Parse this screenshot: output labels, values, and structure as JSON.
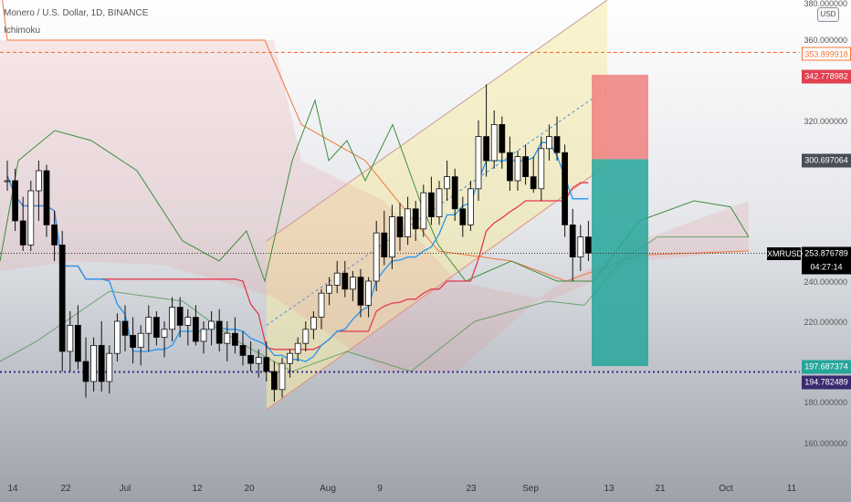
{
  "header": {
    "title": "Monero / U.S. Dollar, 1D, BINANCE",
    "indicator": "Ichimoku",
    "currency_badge": "USD"
  },
  "price_axis": {
    "labels": [
      "380.000000",
      "360.000000",
      "320.000000",
      "240.000000",
      "220.000000",
      "180.000000",
      "160.000000"
    ]
  },
  "time_axis": {
    "labels": [
      "14",
      "22",
      "Jul",
      "12",
      "20",
      "Aug",
      "9",
      "23",
      "Sep",
      "13",
      "21",
      "Oct",
      "11"
    ]
  },
  "price_tags": {
    "resistance_line": {
      "value": "353.899918",
      "bg": "#ffffff",
      "color": "#f0773a"
    },
    "target_price": {
      "value": "342.778982",
      "bg": "#e0404f",
      "color": "#ffffff"
    },
    "entry_price": {
      "value": "300.697064",
      "bg": "#4a4e57",
      "color": "#ffffff"
    },
    "current_price": {
      "value": "253.876789",
      "bg": "#000000",
      "color": "#ffffff"
    },
    "countdown": {
      "value": "04:27:14",
      "bg": "#000000",
      "color": "#ffffff"
    },
    "stop_price": {
      "value": "197.687374",
      "bg": "#26a69a",
      "color": "#ffffff"
    },
    "support_line": {
      "value": "194.782489",
      "bg": "#3b2a6e",
      "color": "#ffffff"
    }
  },
  "symbol_tag": "XMRUSD",
  "colors": {
    "bull_candle": "#ffffff",
    "bear_candle": "#000000",
    "conversion_line": "#2196f3",
    "base_line": "#e53950",
    "leading_span_a": "#3e8e3e",
    "leading_span_b": "#f0773a",
    "channel_fill": "#f5eba6",
    "long_profit": "#26a69a",
    "long_loss": "#f08080",
    "resistance_line": "#f0773a",
    "support_line": "#3b2a8e"
  },
  "chart_data": {
    "type": "candlestick",
    "title": "Monero / U.S. Dollar, 1D, BINANCE",
    "ylim": [
      150,
      385
    ],
    "x_ticks": [
      "14",
      "22",
      "Jul",
      "12",
      "20",
      "Aug",
      "9",
      "23",
      "Sep",
      "13",
      "21",
      "Oct",
      "11"
    ],
    "y_ticks": [
      380,
      360,
      320,
      240,
      220,
      180,
      160
    ],
    "levels": {
      "resistance": 353.899918,
      "support": 194.782489,
      "last_price": 253.876789
    },
    "long_position": {
      "entry": 300.697064,
      "target": 342.778982,
      "stop": 197.687374
    },
    "candles": [
      [
        290,
        300,
        285,
        290
      ],
      [
        290,
        296,
        265,
        270
      ],
      [
        270,
        282,
        255,
        258
      ],
      [
        258,
        290,
        255,
        285
      ],
      [
        285,
        300,
        270,
        295
      ],
      [
        295,
        298,
        262,
        268
      ],
      [
        268,
        275,
        250,
        258
      ],
      [
        258,
        265,
        195,
        205
      ],
      [
        205,
        225,
        195,
        218
      ],
      [
        218,
        228,
        196,
        200
      ],
      [
        200,
        212,
        182,
        190
      ],
      [
        190,
        212,
        185,
        208
      ],
      [
        208,
        220,
        185,
        190
      ],
      [
        190,
        208,
        184,
        204
      ],
      [
        204,
        224,
        200,
        220
      ],
      [
        220,
        228,
        205,
        213
      ],
      [
        213,
        222,
        199,
        207
      ],
      [
        207,
        218,
        198,
        214
      ],
      [
        214,
        228,
        205,
        222
      ],
      [
        222,
        225,
        208,
        212
      ],
      [
        212,
        220,
        202,
        216
      ],
      [
        216,
        232,
        210,
        227
      ],
      [
        227,
        232,
        212,
        218
      ],
      [
        218,
        226,
        208,
        222
      ],
      [
        222,
        228,
        208,
        210
      ],
      [
        210,
        220,
        204,
        216
      ],
      [
        216,
        225,
        208,
        220
      ],
      [
        220,
        226,
        205,
        209
      ],
      [
        209,
        220,
        200,
        214
      ],
      [
        214,
        222,
        204,
        208
      ],
      [
        208,
        215,
        198,
        203
      ],
      [
        203,
        210,
        195,
        199
      ],
      [
        199,
        206,
        192,
        202
      ],
      [
        202,
        210,
        190,
        195
      ],
      [
        195,
        200,
        180,
        186
      ],
      [
        186,
        202,
        182,
        199
      ],
      [
        199,
        206,
        192,
        204
      ],
      [
        204,
        212,
        200,
        209
      ],
      [
        209,
        220,
        205,
        216
      ],
      [
        216,
        225,
        211,
        222
      ],
      [
        222,
        236,
        216,
        234
      ],
      [
        234,
        242,
        228,
        238
      ],
      [
        238,
        250,
        234,
        244
      ],
      [
        244,
        250,
        232,
        236
      ],
      [
        236,
        245,
        230,
        242
      ],
      [
        242,
        246,
        222,
        228
      ],
      [
        228,
        242,
        222,
        240
      ],
      [
        240,
        270,
        235,
        264
      ],
      [
        264,
        275,
        248,
        252
      ],
      [
        252,
        278,
        246,
        272
      ],
      [
        272,
        279,
        255,
        262
      ],
      [
        262,
        282,
        258,
        276
      ],
      [
        276,
        280,
        260,
        266
      ],
      [
        266,
        288,
        262,
        284
      ],
      [
        284,
        292,
        268,
        272
      ],
      [
        272,
        290,
        268,
        286
      ],
      [
        286,
        300,
        280,
        292
      ],
      [
        292,
        296,
        270,
        276
      ],
      [
        276,
        282,
        262,
        268
      ],
      [
        268,
        290,
        265,
        286
      ],
      [
        286,
        320,
        280,
        312
      ],
      [
        312,
        338,
        292,
        300
      ],
      [
        300,
        325,
        296,
        318
      ],
      [
        318,
        322,
        296,
        304
      ],
      [
        304,
        312,
        285,
        290
      ],
      [
        290,
        305,
        285,
        302
      ],
      [
        302,
        308,
        288,
        292
      ],
      [
        292,
        302,
        284,
        286
      ],
      [
        286,
        312,
        280,
        306
      ],
      [
        306,
        318,
        300,
        312
      ],
      [
        312,
        322,
        300,
        304
      ],
      [
        304,
        308,
        262,
        268
      ],
      [
        268,
        276,
        240,
        252
      ],
      [
        252,
        268,
        245,
        262
      ],
      [
        262,
        270,
        250,
        254
      ]
    ]
  }
}
